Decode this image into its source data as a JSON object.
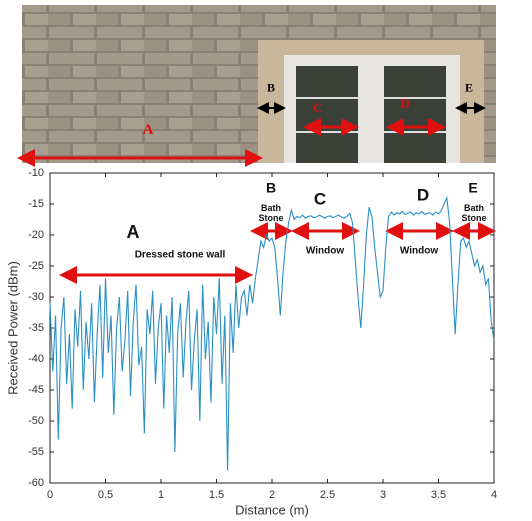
{
  "photo": {
    "labels": [
      "A",
      "B",
      "C",
      "D",
      "E"
    ]
  },
  "chart_data": {
    "type": "line",
    "xlabel": "Distance (m)",
    "ylabel": "Received Power (dBm)",
    "annotations": [
      "A",
      "Dressed stone wall",
      "B",
      "Bath Stone",
      "C",
      "Window",
      "D",
      "Window",
      "E",
      "Bath Stone"
    ],
    "xlim": [
      0,
      4
    ],
    "xticks": [
      0,
      0.5,
      1,
      1.5,
      2,
      2.5,
      3,
      3.5,
      4
    ],
    "ylim": [
      -60,
      -10
    ],
    "yticks": [
      -60,
      -55,
      -50,
      -45,
      -40,
      -35,
      -30,
      -25,
      -20,
      -15,
      -10
    ],
    "grid": false,
    "x": [
      0,
      0.025,
      0.05,
      0.075,
      0.1,
      0.125,
      0.15,
      0.175,
      0.2,
      0.225,
      0.25,
      0.275,
      0.3,
      0.325,
      0.35,
      0.375,
      0.4,
      0.425,
      0.45,
      0.475,
      0.5,
      0.525,
      0.55,
      0.575,
      0.6,
      0.625,
      0.65,
      0.675,
      0.7,
      0.725,
      0.75,
      0.775,
      0.8,
      0.825,
      0.85,
      0.875,
      0.9,
      0.925,
      0.95,
      0.975,
      1,
      1.025,
      1.05,
      1.075,
      1.1,
      1.125,
      1.15,
      1.175,
      1.2,
      1.225,
      1.25,
      1.275,
      1.3,
      1.325,
      1.35,
      1.375,
      1.4,
      1.425,
      1.45,
      1.475,
      1.5,
      1.525,
      1.55,
      1.575,
      1.6,
      1.625,
      1.65,
      1.675,
      1.7,
      1.725,
      1.75,
      1.775,
      1.8,
      1.825,
      1.85,
      1.875,
      1.9,
      1.925,
      1.95,
      1.975,
      2,
      2.025,
      2.05,
      2.075,
      2.1,
      2.125,
      2.15,
      2.175,
      2.2,
      2.225,
      2.25,
      2.275,
      2.3,
      2.325,
      2.35,
      2.375,
      2.4,
      2.425,
      2.45,
      2.475,
      2.5,
      2.525,
      2.55,
      2.575,
      2.6,
      2.625,
      2.65,
      2.675,
      2.7,
      2.725,
      2.75,
      2.775,
      2.8,
      2.825,
      2.85,
      2.875,
      2.9,
      2.925,
      2.95,
      2.975,
      3,
      3.025,
      3.05,
      3.075,
      3.1,
      3.125,
      3.15,
      3.175,
      3.2,
      3.225,
      3.25,
      3.275,
      3.3,
      3.325,
      3.35,
      3.375,
      3.4,
      3.425,
      3.45,
      3.475,
      3.5,
      3.525,
      3.55,
      3.575,
      3.6,
      3.625,
      3.65,
      3.675,
      3.7,
      3.725,
      3.75,
      3.775,
      3.8,
      3.825,
      3.85,
      3.875,
      3.9,
      3.925,
      3.95,
      3.975,
      4
    ],
    "series": [
      {
        "color": "#2a8fc4",
        "values": [
          -31,
          -42,
          -33,
          -53,
          -35,
          -30,
          -44,
          -36,
          -48,
          -32,
          -38,
          -29,
          -45,
          -34,
          -40,
          -31,
          -47,
          -36,
          -28,
          -43,
          -27,
          -39,
          -33,
          -49,
          -35,
          -30,
          -42,
          -37,
          -29,
          -46,
          -34,
          -28,
          -41,
          -38,
          -52,
          -32,
          -36,
          -29,
          -44,
          -35,
          -31,
          -48,
          -33,
          -39,
          -30,
          -55,
          -36,
          -31,
          -43,
          -34,
          -29,
          -45,
          -37,
          -32,
          -50,
          -28,
          -40,
          -34,
          -47,
          -30,
          -36,
          -27,
          -44,
          -33,
          -58,
          -31,
          -39,
          -28,
          -35,
          -30,
          -29,
          -33,
          -28,
          -31,
          -27,
          -24,
          -21,
          -22,
          -20,
          -21,
          -20.5,
          -22,
          -27,
          -33,
          -26,
          -21,
          -18,
          -16,
          -17.5,
          -17,
          -17.2,
          -16.8,
          -17.3,
          -17,
          -16.9,
          -17.2,
          -17.1,
          -16.8,
          -17,
          -17.3,
          -17,
          -16.9,
          -17.2,
          -17,
          -16.8,
          -17.1,
          -17.3,
          -17,
          -16.5,
          -18,
          -24,
          -30,
          -35,
          -28,
          -20,
          -15.5,
          -17,
          -22,
          -26,
          -30,
          -29,
          -22,
          -17,
          -16.3,
          -16.8,
          -16.4,
          -16.6,
          -16.2,
          -16.7,
          -16.5,
          -16.3,
          -16.8,
          -16.4,
          -16.6,
          -16.2,
          -16.7,
          -16.5,
          -16.4,
          -16.8,
          -16.3,
          -16.6,
          -16.1,
          -15,
          -14,
          -18,
          -27,
          -36,
          -28,
          -21,
          -20.5,
          -22,
          -21,
          -23,
          -25,
          -24,
          -26,
          -25,
          -28,
          -27,
          -34,
          -37
        ]
      }
    ]
  }
}
